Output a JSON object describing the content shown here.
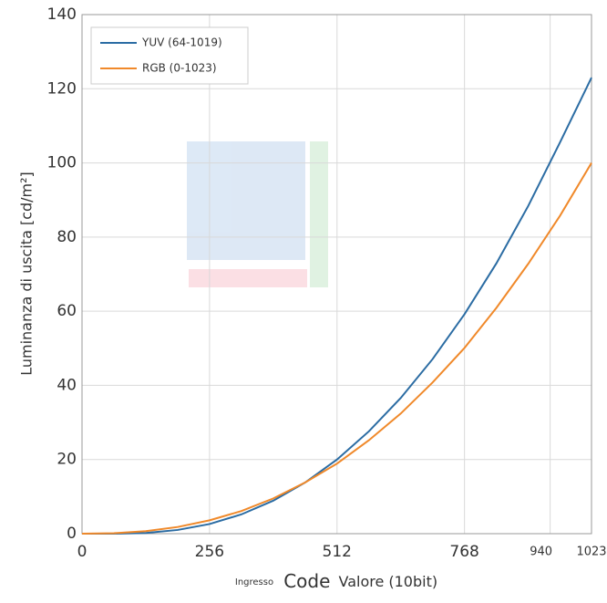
{
  "chart_data": {
    "type": "line",
    "ylabel": "Luminanza di uscita [cd/m²]",
    "xlabel_parts": [
      "Ingresso",
      "Code",
      "Valore (10bit)"
    ],
    "x": [
      0,
      64,
      128,
      192,
      256,
      320,
      384,
      448,
      512,
      576,
      640,
      704,
      768,
      832,
      896,
      960,
      1023
    ],
    "series": [
      {
        "name": "YUV (64-1019)",
        "color": "#2b6ca3",
        "values": [
          0,
          0,
          0.19,
          1.0,
          2.6,
          5.2,
          8.9,
          13.8,
          20.0,
          27.6,
          36.6,
          47.1,
          59.2,
          72.9,
          88.4,
          105.6,
          123
        ]
      },
      {
        "name": "RGB (0-1023)",
        "color": "#f0892a",
        "values": [
          0,
          0.13,
          0.68,
          1.8,
          3.6,
          6.1,
          9.5,
          13.8,
          18.9,
          25.2,
          32.4,
          40.8,
          50.1,
          60.9,
          72.8,
          85.8,
          100
        ]
      }
    ],
    "xlim": [
      0,
      1023
    ],
    "xticks": [
      0,
      256,
      512,
      768,
      940,
      1023
    ],
    "ylim": [
      0,
      140
    ],
    "yticks": [
      0,
      20,
      40,
      60,
      80,
      100,
      120,
      140
    ],
    "grid": true,
    "legend": "upper-left"
  }
}
